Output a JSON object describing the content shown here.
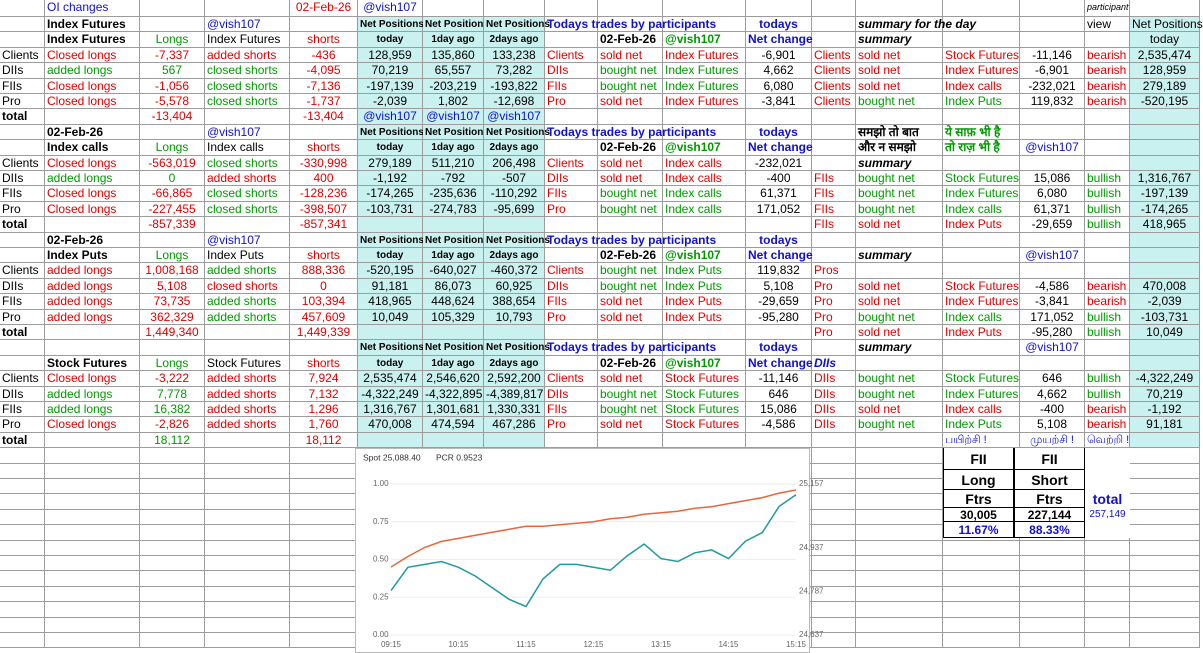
{
  "sheet": {
    "rows": [
      [
        null,
        "OI changes",
        null,
        null,
        "02-Feb-26",
        "@vish107",
        null,
        null,
        null,
        null,
        null,
        null,
        null,
        null,
        null,
        null,
        "participant",
        null
      ],
      [
        null,
        "Index Futures",
        null,
        "@vish107",
        null,
        "Net Positions",
        "Net Positions",
        "Net Positions",
        "Todays trades by participants",
        null,
        null,
        "todays",
        null,
        "summary for the day",
        null,
        null,
        "view",
        "Net Positions"
      ],
      [
        null,
        "Index Futures",
        "Longs",
        "Index Futures",
        "shorts",
        "today",
        "1day ago",
        "2days ago",
        null,
        "02-Feb-26",
        "@vish107",
        "Net change",
        null,
        "summary",
        null,
        null,
        null,
        "today"
      ],
      [
        "Clients",
        "Closed longs",
        "-7,337",
        "added shorts",
        "-436",
        "128,959",
        "135,860",
        "133,238",
        "Clients",
        "sold net",
        "Index Futures",
        "-6,901",
        "Clients",
        "sold net",
        "Stock Futures",
        "-11,146",
        "bearish",
        "2,535,474"
      ],
      [
        "DIIs",
        "added longs",
        "567",
        "closed shorts",
        "-4,095",
        "70,219",
        "65,557",
        "73,282",
        "DIIs",
        "bought net",
        "Index Futures",
        "4,662",
        "Clients",
        "sold net",
        "Index Futures",
        "-6,901",
        "bearish",
        "128,959"
      ],
      [
        "FIIs",
        "Closed longs",
        "-1,056",
        "closed shorts",
        "-7,136",
        "-197,139",
        "-203,219",
        "-193,822",
        "FIIs",
        "bought net",
        "Index Futures",
        "6,080",
        "Clients",
        "sold net",
        "Index calls",
        "-232,021",
        "bearish",
        "279,189"
      ],
      [
        "Pro",
        "Closed longs",
        "-5,578",
        "closed shorts",
        "-1,737",
        "-2,039",
        "1,802",
        "-12,698",
        "Pro",
        "sold net",
        "Index Futures",
        "-3,841",
        "Clients",
        "bought net",
        "Index Puts",
        "119,832",
        "bearish",
        "-520,195"
      ],
      [
        "total",
        null,
        "-13,404",
        null,
        "-13,404",
        "@vish107",
        "@vish107",
        "@vish107",
        null,
        null,
        null,
        null,
        null,
        null,
        null,
        null,
        null,
        null
      ],
      [
        null,
        "02-Feb-26",
        null,
        "@vish107",
        null,
        "Net Positions",
        "Net Positions",
        "Net Positions",
        "Todays trades by participants",
        null,
        null,
        "todays",
        null,
        "समझो तो बात",
        "ये साफ़ भी है",
        null,
        null,
        null
      ],
      [
        null,
        "Index calls",
        "Longs",
        "Index calls",
        "shorts",
        "today",
        "1day ago",
        "2days ago",
        null,
        "02-Feb-26",
        "@vish107",
        "Net change",
        null,
        "और न समझो",
        "तो राज़ भी है",
        "@vish107",
        null,
        null
      ],
      [
        "Clients",
        "Closed longs",
        "-563,019",
        "closed shorts",
        "-330,998",
        "279,189",
        "511,210",
        "206,498",
        "Clients",
        "sold net",
        "Index calls",
        "-232,021",
        null,
        "summary",
        null,
        null,
        null,
        null
      ],
      [
        "DIIs",
        "added longs",
        "0",
        "added shorts",
        "400",
        "-1,192",
        "-792",
        "-507",
        "DIIs",
        "sold net",
        "Index calls",
        "-400",
        "FIIs",
        "bought net",
        "Stock Futures",
        "15,086",
        "bullish",
        "1,316,767"
      ],
      [
        "FIIs",
        "Closed longs",
        "-66,865",
        "closed shorts",
        "-128,236",
        "-174,265",
        "-235,636",
        "-110,292",
        "FIIs",
        "bought net",
        "Index calls",
        "61,371",
        "FIIs",
        "bought net",
        "Index Futures",
        "6,080",
        "bullish",
        "-197,139"
      ],
      [
        "Pro",
        "Closed longs",
        "-227,455",
        "closed shorts",
        "-398,507",
        "-103,731",
        "-274,783",
        "-95,699",
        "Pro",
        "bought net",
        "Index calls",
        "171,052",
        "FIIs",
        "bought net",
        "Index calls",
        "61,371",
        "bullish",
        "-174,265"
      ],
      [
        "total",
        null,
        "-857,339",
        null,
        "-857,341",
        null,
        null,
        null,
        null,
        null,
        null,
        null,
        "FIIs",
        "sold net",
        "Index Puts",
        "-29,659",
        "bullish",
        "418,965"
      ],
      [
        null,
        "02-Feb-26",
        null,
        "@vish107",
        null,
        "Net Positions",
        "Net Positions",
        "Net Positions",
        "Todays trades by participants",
        null,
        null,
        "todays",
        null,
        null,
        null,
        null,
        null,
        null
      ],
      [
        null,
        "Index Puts",
        "Longs",
        "Index Puts",
        "shorts",
        "today",
        "1day ago",
        "2days ago",
        null,
        "02-Feb-26",
        "@vish107",
        "Net change",
        null,
        "summary",
        null,
        "@vish107",
        null,
        null
      ],
      [
        "Clients",
        "added longs",
        "1,008,168",
        "added shorts",
        "888,336",
        "-520,195",
        "-640,027",
        "-460,372",
        "Clients",
        "bought net",
        "Index Puts",
        "119,832",
        "Pros",
        null,
        null,
        null,
        null,
        null
      ],
      [
        "DIIs",
        "added longs",
        "5,108",
        "closed shorts",
        "0",
        "91,181",
        "86,073",
        "60,925",
        "DIIs",
        "bought net",
        "Index Puts",
        "5,108",
        "Pro",
        "sold net",
        "Stock Futures",
        "-4,586",
        "bearish",
        "470,008"
      ],
      [
        "FIIs",
        "added longs",
        "73,735",
        "added shorts",
        "103,394",
        "418,965",
        "448,624",
        "388,654",
        "FIIs",
        "sold net",
        "Index Puts",
        "-29,659",
        "Pro",
        "sold net",
        "Index Futures",
        "-3,841",
        "bearish",
        "-2,039"
      ],
      [
        "Pro",
        "added longs",
        "362,329",
        "added shorts",
        "457,609",
        "10,049",
        "105,329",
        "10,793",
        "Pro",
        "sold net",
        "Index Puts",
        "-95,280",
        "Pro",
        "bought net",
        "Index calls",
        "171,052",
        "bullish",
        "-103,731"
      ],
      [
        "total",
        null,
        "1,449,340",
        null,
        "1,449,339",
        null,
        null,
        null,
        null,
        null,
        null,
        null,
        "Pro",
        "sold net",
        "Index Puts",
        "-95,280",
        "bullish",
        "10,049"
      ],
      [
        null,
        null,
        null,
        null,
        null,
        "Net Positions",
        "Net Positions",
        "Net Positions",
        "Todays trades by participants",
        null,
        null,
        "todays",
        null,
        "summary",
        null,
        "@vish107",
        null,
        null
      ],
      [
        null,
        "Stock Futures",
        "Longs",
        "Stock Futures",
        "shorts",
        "today",
        "1day ago",
        "2days ago",
        null,
        "02-Feb-26",
        "@vish107",
        "Net change",
        "DIIs",
        null,
        null,
        null,
        null,
        null
      ],
      [
        "Clients",
        "Closed longs",
        "-3,222",
        "added shorts",
        "7,924",
        "2,535,474",
        "2,546,620",
        "2,592,200",
        "Clients",
        "sold net",
        "Stock Futures",
        "-11,146",
        "DIIs",
        "bought net",
        "Stock Futures",
        "646",
        "bullish",
        "-4,322,249"
      ],
      [
        "DIIs",
        "added longs",
        "7,778",
        "added shorts",
        "7,132",
        "-4,322,249",
        "-4,322,895",
        "-4,389,817",
        "DIIs",
        "bought net",
        "Stock Futures",
        "646",
        "DIIs",
        "bought net",
        "Index Futures",
        "4,662",
        "bullish",
        "70,219"
      ],
      [
        "FIIs",
        "added longs",
        "16,382",
        "added shorts",
        "1,296",
        "1,316,767",
        "1,301,681",
        "1,330,331",
        "FIIs",
        "bought net",
        "Stock Futures",
        "15,086",
        "DIIs",
        "sold net",
        "Index calls",
        "-400",
        "bearish",
        "-1,192"
      ],
      [
        "Pro",
        "Closed longs",
        "-2,826",
        "added shorts",
        "1,760",
        "470,008",
        "474,594",
        "467,286",
        "Pro",
        "sold net",
        "Stock Futures",
        "-4,586",
        "DIIs",
        "bought net",
        "Index Puts",
        "5,108",
        "bearish",
        "91,181"
      ],
      [
        "total",
        null,
        "18,112",
        null,
        "18,112",
        null,
        null,
        null,
        null,
        null,
        null,
        null,
        null,
        null,
        "பயிற்சி !",
        "முயற்சி !",
        "வெற்றி !",
        null
      ]
    ]
  },
  "fii_box": {
    "rows": [
      [
        "FII",
        "FII",
        null
      ],
      [
        "Long",
        "Short",
        null
      ],
      [
        "Ftrs",
        "Ftrs",
        "total"
      ],
      [
        "30,005",
        "227,144",
        "257,149"
      ],
      [
        "11.67%",
        "88.33%",
        null
      ]
    ]
  },
  "chart_data": {
    "type": "line",
    "annotations": [
      "Spot 25,088.40",
      "PCR 0.9523"
    ],
    "x": [
      "09:15",
      "09:30",
      "09:45",
      "10:00",
      "10:15",
      "10:30",
      "10:45",
      "11:00",
      "11:15",
      "11:30",
      "11:45",
      "12:00",
      "12:15",
      "12:30",
      "12:45",
      "13:00",
      "13:15",
      "13:30",
      "13:45",
      "14:00",
      "14:15",
      "14:30",
      "14:45",
      "15:00",
      "15:15"
    ],
    "xticks": [
      "09:15",
      "10:15",
      "11:15",
      "12:15",
      "13:15",
      "14:15",
      "15:15"
    ],
    "series": [
      {
        "color": "#e8663d",
        "values": [
          0.45,
          0.52,
          0.58,
          0.62,
          0.64,
          0.66,
          0.68,
          0.7,
          0.72,
          0.72,
          0.73,
          0.74,
          0.75,
          0.77,
          0.78,
          0.8,
          0.81,
          0.82,
          0.84,
          0.85,
          0.87,
          0.89,
          0.91,
          0.94,
          0.96
        ]
      },
      {
        "color": "#1f9aa0",
        "axis": "y2",
        "values": [
          24790,
          24870,
          24880,
          24890,
          24870,
          24840,
          24800,
          24760,
          24735,
          24830,
          24880,
          24880,
          24870,
          24860,
          24910,
          24950,
          24900,
          24890,
          24920,
          24930,
          24900,
          24960,
          24990,
          25080,
          25120
        ]
      }
    ],
    "ylim": [
      0,
      1
    ],
    "yticks": [
      {
        "value": 0,
        "label": "0.00"
      },
      {
        "value": 0.25,
        "label": "0.25"
      },
      {
        "value": 0.5,
        "label": "0.50"
      },
      {
        "value": 0.75,
        "label": "0.75"
      },
      {
        "value": 1,
        "label": "1.00"
      }
    ],
    "y2lim": [
      24637,
      25157
    ],
    "y2ticks": [
      {
        "value": 24637,
        "label": "24,637"
      },
      {
        "value": 24787,
        "label": "24,787"
      },
      {
        "value": 24937,
        "label": "24,937"
      },
      {
        "value": 25157,
        "label": "25,157"
      }
    ],
    "grid": true
  }
}
